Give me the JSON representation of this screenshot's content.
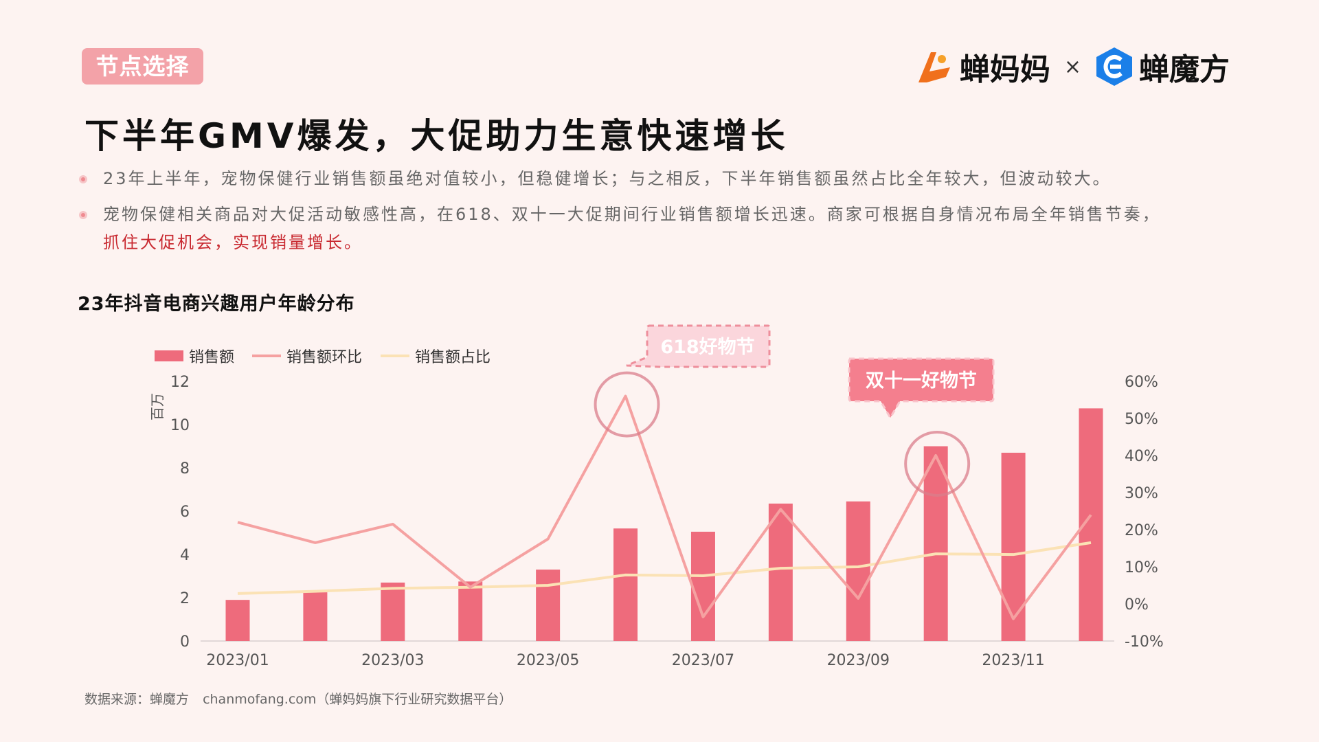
{
  "header": {
    "tag": "节点选择",
    "logo_left": "蝉妈妈",
    "separator": "×",
    "logo_right": "蝉魔方"
  },
  "title": "下半年GMV爆发，大促助力生意快速增长",
  "bullets": [
    {
      "text": "23年上半年，宠物保健行业销售额虽绝对值较小，但稳健增长；与之相反，下半年销售额虽然占比全年较大，但波动较大。",
      "highlight": ""
    },
    {
      "text": "宠物保健相关商品对大促活动敏感性高，在618、双十一大促期间行业销售额增长迅速。商家可根据自身情况布局全年销售节奏，",
      "highlight": "抓住大促机会，实现销量增长。"
    }
  ],
  "chart_title": "23年抖音电商兴趣用户年龄分布",
  "source": {
    "label": "数据来源：蝉魔方",
    "site": "chanmofang.com（蝉妈妈旗下行业研究数据平台）"
  },
  "chart_data": {
    "type": "bar",
    "x": [
      "2023/01",
      "2023/02",
      "2023/03",
      "2023/04",
      "2023/05",
      "2023/06",
      "2023/07",
      "2023/08",
      "2023/09",
      "2023/10",
      "2023/11",
      "2023/12"
    ],
    "xtick_labels": [
      "2023/01",
      "2023/03",
      "2023/05",
      "2023/07",
      "2023/09",
      "2023/11"
    ],
    "y_unit": "百万",
    "ylim": [
      0,
      12
    ],
    "yticks": [
      0,
      2,
      4,
      6,
      8,
      10,
      12
    ],
    "y2lim": [
      -10,
      60
    ],
    "y2ticks": [
      "-10%",
      "0%",
      "10%",
      "20%",
      "30%",
      "40%",
      "50%",
      "60%"
    ],
    "legend_position": "top-left",
    "series": [
      {
        "name": "销售额",
        "type": "bar",
        "axis": "left",
        "color": "#ee6b7c",
        "values": [
          1.9,
          2.25,
          2.7,
          2.75,
          3.3,
          5.2,
          5.05,
          6.35,
          6.45,
          9.0,
          8.7,
          10.75
        ]
      },
      {
        "name": "销售额环比",
        "type": "line",
        "axis": "right",
        "color": "#f5a1a1",
        "values": [
          22,
          16.5,
          21.5,
          4.5,
          17.5,
          56,
          -3.5,
          25.5,
          1.5,
          40,
          -4,
          24
        ]
      },
      {
        "name": "销售额占比",
        "type": "line",
        "axis": "right",
        "color": "#fbe2b5",
        "values": [
          2.8,
          3.4,
          4.2,
          4.5,
          5.0,
          7.8,
          7.6,
          9.6,
          10.0,
          13.5,
          13.3,
          16.5
        ]
      }
    ],
    "annotations": [
      "618好物节",
      "双十一好物节"
    ]
  },
  "colors": {
    "background": "#fdf3f1",
    "tag": "#f3a2a8",
    "accent": "#c8282f"
  }
}
